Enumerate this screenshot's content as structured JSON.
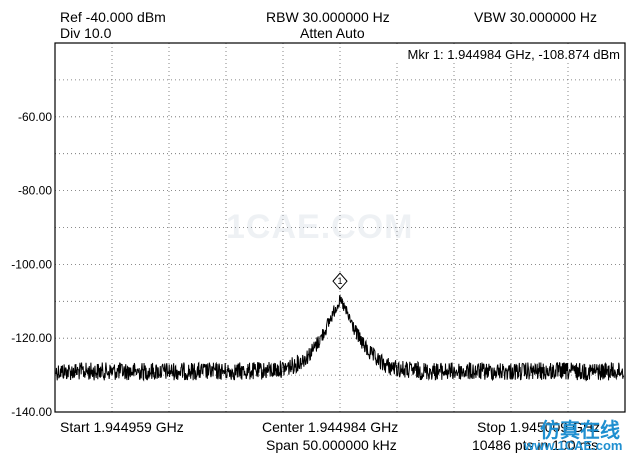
{
  "header": {
    "ref": "Ref -40.000 dBm",
    "div": "Div 10.0",
    "rbw": "RBW 30.000000 Hz",
    "atten": "Atten Auto",
    "vbw": "VBW 30.000000 Hz"
  },
  "marker": {
    "readout": "Mkr 1: 1.944984 GHz, -108.874 dBm",
    "label": "1",
    "freq_ghz": 1.944984,
    "level_dbm": -108.874
  },
  "footer": {
    "start": "Start 1.944959 GHz",
    "center": "Center 1.944984 GHz",
    "span": "Span 50.000000 kHz",
    "stop": "Stop 1.945009 GHz",
    "points": "10486 pts in 100 ms"
  },
  "watermarks": {
    "center": "1CAE.COM",
    "corner_cn": "仿真在线",
    "corner_url": "www.1CAE.com"
  },
  "chart_data": {
    "type": "line",
    "x_range_ghz": [
      1.944959,
      1.945009
    ],
    "ylim": [
      -140,
      -40
    ],
    "y_ticks": [
      {
        "value": -60,
        "label": "-60.00"
      },
      {
        "value": -80,
        "label": "-80.00"
      },
      {
        "value": -100,
        "label": "-100.00"
      },
      {
        "value": -120,
        "label": "-120.00"
      },
      {
        "value": -140,
        "label": "-140.00"
      }
    ],
    "grid": true,
    "x_divisions": 10,
    "y_divisions": 10,
    "noise_floor_dbm": -129,
    "peak": {
      "x_ghz": 1.944984,
      "y_dbm": -110
    },
    "trace_points": 10486,
    "trace_color": "#000000"
  }
}
